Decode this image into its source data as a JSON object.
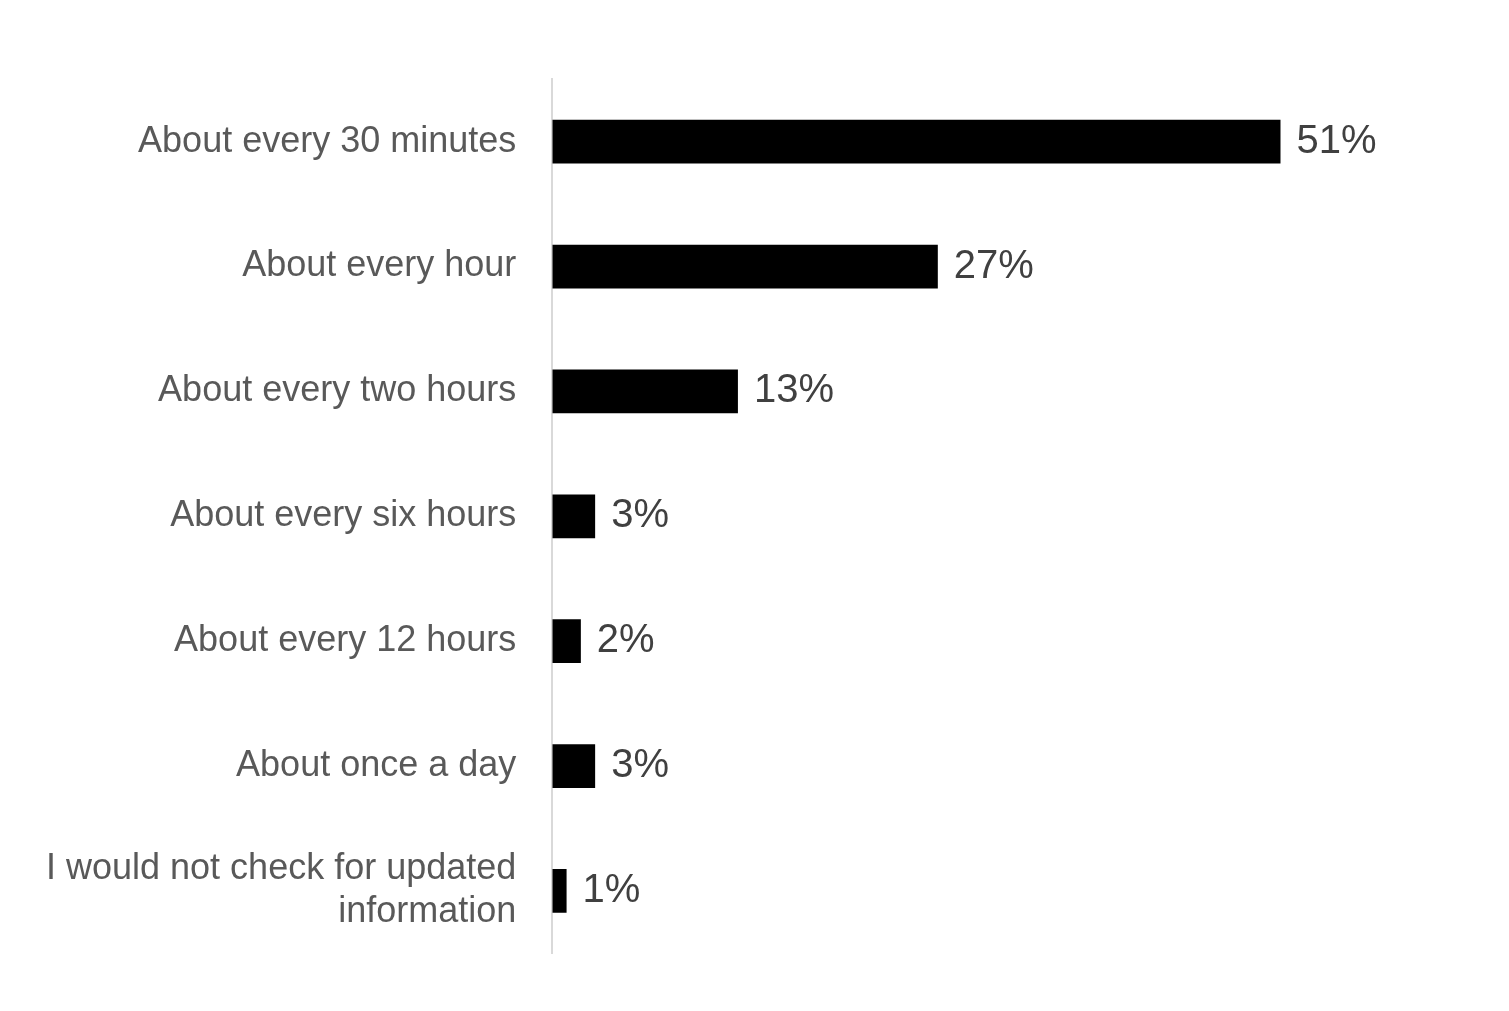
{
  "chart_data": {
    "type": "bar",
    "orientation": "horizontal",
    "categories": [
      "About every 30 minutes",
      "About every hour",
      "About every two hours",
      "About every six hours",
      "About every 12 hours",
      "About once a day",
      "I would not check for updated information"
    ],
    "values": [
      51,
      27,
      13,
      3,
      2,
      3,
      1
    ],
    "value_labels": [
      "51%",
      "27%",
      "13%",
      "3%",
      "2%",
      "3%",
      "1%"
    ],
    "color": "#000000",
    "legend": false,
    "tick_labels": "y"
  }
}
